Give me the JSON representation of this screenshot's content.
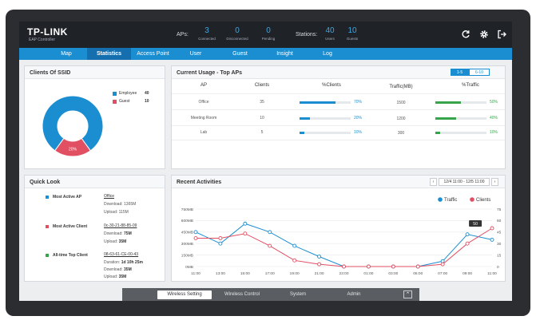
{
  "header": {
    "logo": "TP-LINK",
    "logo_sub": "EAP Controller",
    "aps_label": "APs:",
    "connected_count": "3",
    "connected_label": "Connected",
    "disconnected_count": "0",
    "disconnected_label": "Disconnected",
    "pending_count": "0",
    "pending_label": "Pending",
    "stations_label": "Stations:",
    "users_count": "40",
    "users_label": "Users",
    "guests_count": "10",
    "guests_label": "Guests",
    "icons": [
      "refresh-icon",
      "gear-icon",
      "logout-icon"
    ]
  },
  "nav": {
    "items": [
      {
        "label": "Map"
      },
      {
        "label": "Statistics",
        "active": true
      },
      {
        "label": "Access Point"
      },
      {
        "label": "User"
      },
      {
        "label": "Guest"
      },
      {
        "label": "Insight"
      },
      {
        "label": "Log"
      }
    ]
  },
  "ssid": {
    "title": "Clients Of SSID",
    "legend": [
      {
        "name": "Employee",
        "value": "40",
        "color": "#1b8ed1"
      },
      {
        "name": "Guest",
        "value": "10",
        "color": "#e14f62"
      }
    ],
    "slices": [
      {
        "label": "80%",
        "fraction": 0.8,
        "color": "#1b8ed1"
      },
      {
        "label": "20%",
        "fraction": 0.2,
        "color": "#e14f62"
      }
    ]
  },
  "usage": {
    "title": "Current Usage - Top APs",
    "toggle": [
      "1-5",
      "6-10"
    ],
    "columns": [
      "AP",
      "Clients",
      "%Clients",
      "Traffic(MB)",
      "%Traffic"
    ],
    "rows": [
      {
        "ap": "Office",
        "clients": "35",
        "pct_clients": "70%",
        "pct_clients_value": 0.7,
        "traffic": "1500",
        "pct_traffic": "50%",
        "pct_traffic_value": 0.5
      },
      {
        "ap": "Meeting Room",
        "clients": "10",
        "pct_clients": "20%",
        "pct_clients_value": 0.2,
        "traffic": "1200",
        "pct_traffic": "40%",
        "pct_traffic_value": 0.4
      },
      {
        "ap": "Lab",
        "clients": "5",
        "pct_clients": "10%",
        "pct_clients_value": 0.1,
        "traffic": "300",
        "pct_traffic": "10%",
        "pct_traffic_value": 0.1
      }
    ]
  },
  "quick": {
    "title": "Quick Look",
    "items": [
      {
        "label": "Most Active AP",
        "color": "#1b8ed1",
        "link": "Office",
        "line1_key": "Download:",
        "line1_val": "1365M",
        "line2_key": "Upload:",
        "line2_val": "115M",
        "bold": false
      },
      {
        "label": "Most Active Client",
        "color": "#e14f62",
        "link": "0c-30-21-88-85-09",
        "line1_key": "Download:",
        "line1_val": "75M",
        "line2_key": "Upload:",
        "line2_val": "35M",
        "bold": true
      },
      {
        "label": "All-time Top Client",
        "color": "#37a34a",
        "link": "08-63-61-CE-00-43",
        "line1_key": "Duration:",
        "line1_val": "1d 10h 25m",
        "line2_key": "Download:",
        "line2_val": "35M",
        "line3_key": "Upload:",
        "line3_val": "35M",
        "bold": true
      }
    ]
  },
  "recent": {
    "title": "Recent Activities",
    "date_range": "12/4 11:00 - 12/5 11:00",
    "prev_icon": "chevron-left-icon",
    "next_icon": "chevron-right-icon"
  },
  "chart_data": {
    "type": "line",
    "x": [
      "11:00",
      "13:00",
      "15:00",
      "17:00",
      "19:00",
      "21:00",
      "23:00",
      "01:00",
      "03:00",
      "05:00",
      "07:00",
      "09:00",
      "11:00"
    ],
    "y_left_ticks": [
      "0MB",
      "150MB",
      "300MB",
      "450MB",
      "600MB",
      "750MB"
    ],
    "y_left_range": [
      0,
      750
    ],
    "y_right_ticks": [
      "0",
      "15",
      "30",
      "45",
      "60",
      "75"
    ],
    "y_right_range": [
      0,
      75
    ],
    "series": [
      {
        "name": "Traffic",
        "axis": "left",
        "color": "#1b8ed1",
        "values": [
          450,
          300,
          560,
          450,
          270,
          130,
          0,
          0,
          0,
          0,
          70,
          420,
          350
        ]
      },
      {
        "name": "Clients",
        "axis": "right",
        "color": "#e14f62",
        "values": [
          37,
          37,
          43,
          27,
          8,
          3,
          0,
          0,
          0,
          0,
          3,
          30,
          50
        ]
      }
    ],
    "tooltip": {
      "value": "50"
    },
    "grid": true,
    "legend": "top-right"
  },
  "bottom": {
    "items": [
      {
        "label": "Wireless Setting",
        "active": true
      },
      {
        "label": "Wireless Control"
      },
      {
        "label": "System"
      },
      {
        "label": "Admin"
      }
    ],
    "collapse_icon": "chevron-up-icon"
  }
}
